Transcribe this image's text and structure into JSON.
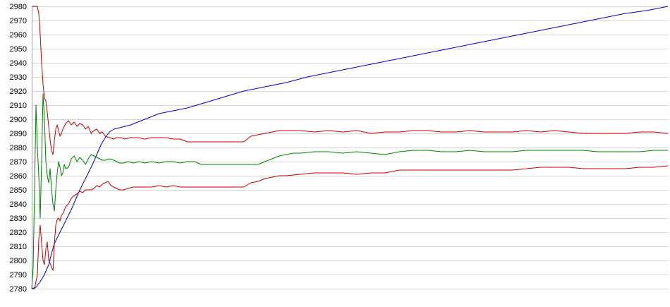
{
  "chart_data": {
    "type": "line",
    "title": "",
    "xlabel": "",
    "ylabel": "",
    "ylim": [
      2780,
      2980
    ],
    "xlim": [
      0,
      450
    ],
    "yticks": [
      2780,
      2790,
      2800,
      2810,
      2820,
      2830,
      2840,
      2850,
      2860,
      2870,
      2880,
      2890,
      2900,
      2910,
      2920,
      2930,
      2940,
      2950,
      2960,
      2970,
      2980
    ],
    "grid": true,
    "legend": "none",
    "series": [
      {
        "color": "#0000c0",
        "points": [
          [
            0,
            2780
          ],
          [
            3,
            2781
          ],
          [
            6,
            2785
          ],
          [
            9,
            2790
          ],
          [
            12,
            2797
          ],
          [
            14,
            2805
          ],
          [
            16,
            2812
          ],
          [
            19,
            2818
          ],
          [
            22,
            2824
          ],
          [
            25,
            2830
          ],
          [
            28,
            2836
          ],
          [
            31,
            2843
          ],
          [
            34,
            2850
          ],
          [
            37,
            2856
          ],
          [
            40,
            2862
          ],
          [
            43,
            2868
          ],
          [
            46,
            2875
          ],
          [
            49,
            2882
          ],
          [
            52,
            2887
          ],
          [
            55,
            2891
          ],
          [
            58,
            2893
          ],
          [
            62,
            2894
          ],
          [
            66,
            2895
          ],
          [
            70,
            2896
          ],
          [
            75,
            2898
          ],
          [
            80,
            2900
          ],
          [
            85,
            2902
          ],
          [
            90,
            2904
          ],
          [
            100,
            2906
          ],
          [
            110,
            2908
          ],
          [
            120,
            2911
          ],
          [
            130,
            2914
          ],
          [
            140,
            2917
          ],
          [
            150,
            2920
          ],
          [
            165,
            2923
          ],
          [
            180,
            2926
          ],
          [
            195,
            2930
          ],
          [
            210,
            2933
          ],
          [
            225,
            2936
          ],
          [
            240,
            2939
          ],
          [
            255,
            2942
          ],
          [
            270,
            2945
          ],
          [
            285,
            2948
          ],
          [
            300,
            2951
          ],
          [
            315,
            2954
          ],
          [
            330,
            2957
          ],
          [
            345,
            2960
          ],
          [
            360,
            2963
          ],
          [
            375,
            2966
          ],
          [
            390,
            2969
          ],
          [
            405,
            2972
          ],
          [
            420,
            2975
          ],
          [
            435,
            2977
          ],
          [
            450,
            2980
          ]
        ]
      },
      {
        "color": "#008000",
        "points": [
          [
            0,
            2780
          ],
          [
            1,
            2795
          ],
          [
            2,
            2850
          ],
          [
            3,
            2910
          ],
          [
            4,
            2880
          ],
          [
            5,
            2860
          ],
          [
            6,
            2830
          ],
          [
            7,
            2870
          ],
          [
            8,
            2918
          ],
          [
            9,
            2900
          ],
          [
            10,
            2870
          ],
          [
            11,
            2860
          ],
          [
            12,
            2855
          ],
          [
            13,
            2865
          ],
          [
            14,
            2850
          ],
          [
            15,
            2840
          ],
          [
            16,
            2835
          ],
          [
            17,
            2850
          ],
          [
            18,
            2862
          ],
          [
            19,
            2870
          ],
          [
            20,
            2866
          ],
          [
            21,
            2860
          ],
          [
            22,
            2862
          ],
          [
            23,
            2868
          ],
          [
            24,
            2865
          ],
          [
            26,
            2866
          ],
          [
            28,
            2872
          ],
          [
            30,
            2874
          ],
          [
            32,
            2870
          ],
          [
            34,
            2873
          ],
          [
            36,
            2871
          ],
          [
            38,
            2868
          ],
          [
            40,
            2872
          ],
          [
            42,
            2875
          ],
          [
            44,
            2874
          ],
          [
            46,
            2873
          ],
          [
            48,
            2872
          ],
          [
            50,
            2871
          ],
          [
            52,
            2871
          ],
          [
            55,
            2872
          ],
          [
            58,
            2871
          ],
          [
            60,
            2870
          ],
          [
            62,
            2869
          ],
          [
            65,
            2869
          ],
          [
            68,
            2870
          ],
          [
            72,
            2869
          ],
          [
            76,
            2870
          ],
          [
            80,
            2869
          ],
          [
            85,
            2870
          ],
          [
            90,
            2869
          ],
          [
            95,
            2870
          ],
          [
            100,
            2870
          ],
          [
            105,
            2869
          ],
          [
            110,
            2870
          ],
          [
            115,
            2870
          ],
          [
            120,
            2868
          ],
          [
            130,
            2868
          ],
          [
            140,
            2868
          ],
          [
            150,
            2868
          ],
          [
            160,
            2868
          ],
          [
            165,
            2870
          ],
          [
            170,
            2872
          ],
          [
            175,
            2874
          ],
          [
            180,
            2875
          ],
          [
            185,
            2876
          ],
          [
            190,
            2876
          ],
          [
            200,
            2877
          ],
          [
            210,
            2877
          ],
          [
            220,
            2876
          ],
          [
            230,
            2877
          ],
          [
            240,
            2876
          ],
          [
            250,
            2875
          ],
          [
            260,
            2877
          ],
          [
            270,
            2878
          ],
          [
            280,
            2878
          ],
          [
            290,
            2877
          ],
          [
            300,
            2877
          ],
          [
            310,
            2878
          ],
          [
            320,
            2877
          ],
          [
            330,
            2877
          ],
          [
            340,
            2877
          ],
          [
            350,
            2878
          ],
          [
            360,
            2878
          ],
          [
            370,
            2878
          ],
          [
            380,
            2878
          ],
          [
            390,
            2878
          ],
          [
            400,
            2877
          ],
          [
            410,
            2877
          ],
          [
            420,
            2877
          ],
          [
            430,
            2877
          ],
          [
            440,
            2878
          ],
          [
            450,
            2878
          ]
        ]
      },
      {
        "color": "#c00000",
        "points": [
          [
            0,
            2980
          ],
          [
            2,
            2980
          ],
          [
            4,
            2980
          ],
          [
            5,
            2975
          ],
          [
            6,
            2960
          ],
          [
            7,
            2940
          ],
          [
            8,
            2925
          ],
          [
            9,
            2915
          ],
          [
            10,
            2913
          ],
          [
            11,
            2905
          ],
          [
            12,
            2895
          ],
          [
            13,
            2885
          ],
          [
            14,
            2878
          ],
          [
            15,
            2875
          ],
          [
            16,
            2885
          ],
          [
            17,
            2893
          ],
          [
            18,
            2896
          ],
          [
            19,
            2892
          ],
          [
            20,
            2888
          ],
          [
            21,
            2890
          ],
          [
            22,
            2893
          ],
          [
            24,
            2897
          ],
          [
            26,
            2899
          ],
          [
            28,
            2896
          ],
          [
            30,
            2898
          ],
          [
            32,
            2895
          ],
          [
            34,
            2897
          ],
          [
            36,
            2896
          ],
          [
            38,
            2893
          ],
          [
            40,
            2895
          ],
          [
            42,
            2890
          ],
          [
            44,
            2892
          ],
          [
            46,
            2893
          ],
          [
            48,
            2890
          ],
          [
            50,
            2891
          ],
          [
            52,
            2888
          ],
          [
            55,
            2887
          ],
          [
            58,
            2886
          ],
          [
            60,
            2887
          ],
          [
            63,
            2887
          ],
          [
            66,
            2886
          ],
          [
            70,
            2887
          ],
          [
            75,
            2887
          ],
          [
            80,
            2886
          ],
          [
            85,
            2887
          ],
          [
            90,
            2887
          ],
          [
            95,
            2887
          ],
          [
            100,
            2886
          ],
          [
            105,
            2886
          ],
          [
            110,
            2884
          ],
          [
            115,
            2884
          ],
          [
            120,
            2884
          ],
          [
            130,
            2884
          ],
          [
            140,
            2884
          ],
          [
            150,
            2884
          ],
          [
            155,
            2888
          ],
          [
            160,
            2889
          ],
          [
            165,
            2890
          ],
          [
            170,
            2891
          ],
          [
            175,
            2892
          ],
          [
            180,
            2892
          ],
          [
            190,
            2892
          ],
          [
            200,
            2891
          ],
          [
            210,
            2892
          ],
          [
            220,
            2891
          ],
          [
            230,
            2892
          ],
          [
            240,
            2890
          ],
          [
            250,
            2891
          ],
          [
            260,
            2891
          ],
          [
            270,
            2892
          ],
          [
            280,
            2892
          ],
          [
            290,
            2891
          ],
          [
            300,
            2891
          ],
          [
            310,
            2892
          ],
          [
            320,
            2891
          ],
          [
            330,
            2891
          ],
          [
            340,
            2891
          ],
          [
            350,
            2892
          ],
          [
            360,
            2891
          ],
          [
            370,
            2892
          ],
          [
            380,
            2891
          ],
          [
            390,
            2890
          ],
          [
            400,
            2890
          ],
          [
            410,
            2890
          ],
          [
            420,
            2890
          ],
          [
            430,
            2891
          ],
          [
            440,
            2891
          ],
          [
            450,
            2890
          ]
        ]
      },
      {
        "color": "#c00000",
        "points": [
          [
            0,
            2780
          ],
          [
            2,
            2780
          ],
          [
            4,
            2790
          ],
          [
            5,
            2815
          ],
          [
            6,
            2825
          ],
          [
            7,
            2812
          ],
          [
            8,
            2800
          ],
          [
            9,
            2797
          ],
          [
            10,
            2808
          ],
          [
            11,
            2813
          ],
          [
            12,
            2800
          ],
          [
            13,
            2798
          ],
          [
            14,
            2795
          ],
          [
            15,
            2793
          ],
          [
            16,
            2812
          ],
          [
            17,
            2825
          ],
          [
            18,
            2829
          ],
          [
            19,
            2830
          ],
          [
            20,
            2828
          ],
          [
            21,
            2832
          ],
          [
            22,
            2833
          ],
          [
            24,
            2838
          ],
          [
            26,
            2840
          ],
          [
            28,
            2844
          ],
          [
            30,
            2846
          ],
          [
            32,
            2847
          ],
          [
            34,
            2849
          ],
          [
            36,
            2848
          ],
          [
            38,
            2850
          ],
          [
            40,
            2850
          ],
          [
            42,
            2850
          ],
          [
            44,
            2851
          ],
          [
            46,
            2853
          ],
          [
            48,
            2852
          ],
          [
            50,
            2854
          ],
          [
            52,
            2855
          ],
          [
            54,
            2856
          ],
          [
            56,
            2853
          ],
          [
            58,
            2852
          ],
          [
            60,
            2851
          ],
          [
            62,
            2850
          ],
          [
            65,
            2850
          ],
          [
            68,
            2851
          ],
          [
            72,
            2852
          ],
          [
            76,
            2852
          ],
          [
            80,
            2852
          ],
          [
            85,
            2852
          ],
          [
            90,
            2853
          ],
          [
            95,
            2852
          ],
          [
            100,
            2853
          ],
          [
            105,
            2852
          ],
          [
            110,
            2852
          ],
          [
            115,
            2852
          ],
          [
            120,
            2852
          ],
          [
            130,
            2852
          ],
          [
            140,
            2852
          ],
          [
            150,
            2852
          ],
          [
            155,
            2855
          ],
          [
            160,
            2856
          ],
          [
            165,
            2858
          ],
          [
            170,
            2859
          ],
          [
            175,
            2860
          ],
          [
            180,
            2860
          ],
          [
            190,
            2861
          ],
          [
            200,
            2862
          ],
          [
            210,
            2862
          ],
          [
            220,
            2862
          ],
          [
            230,
            2861
          ],
          [
            240,
            2862
          ],
          [
            250,
            2862
          ],
          [
            260,
            2864
          ],
          [
            270,
            2864
          ],
          [
            280,
            2864
          ],
          [
            290,
            2864
          ],
          [
            300,
            2864
          ],
          [
            310,
            2864
          ],
          [
            320,
            2864
          ],
          [
            330,
            2864
          ],
          [
            340,
            2864
          ],
          [
            350,
            2865
          ],
          [
            360,
            2866
          ],
          [
            370,
            2866
          ],
          [
            380,
            2866
          ],
          [
            390,
            2865
          ],
          [
            400,
            2865
          ],
          [
            410,
            2865
          ],
          [
            420,
            2865
          ],
          [
            430,
            2866
          ],
          [
            440,
            2866
          ],
          [
            450,
            2867
          ]
        ]
      }
    ]
  }
}
